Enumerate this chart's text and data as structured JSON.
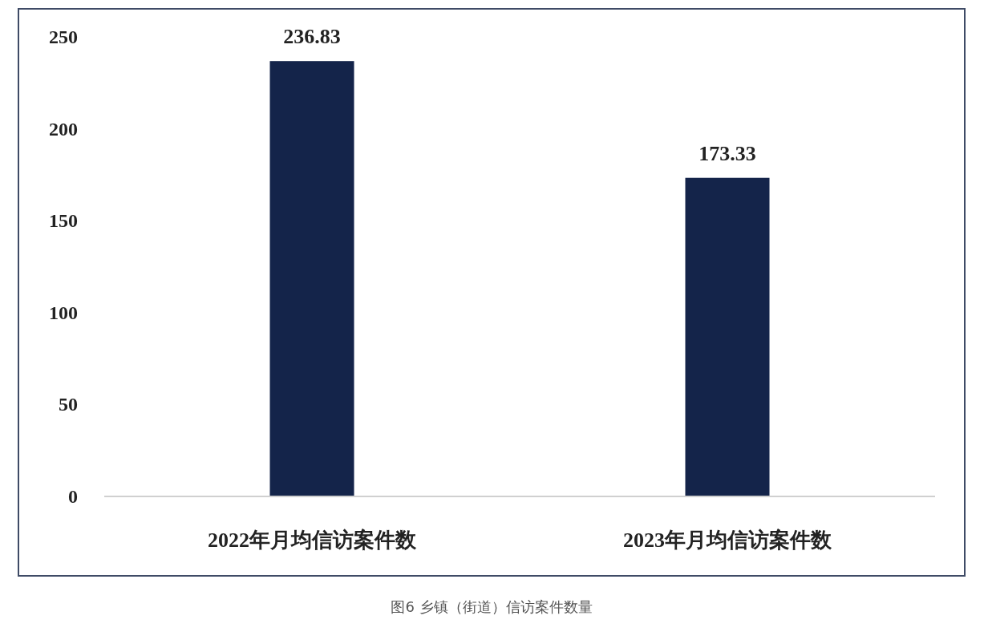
{
  "chart_data": {
    "type": "bar",
    "categories": [
      "2022年月均信访案件数",
      "2023年月均信访案件数"
    ],
    "values": [
      236.83,
      173.33
    ],
    "color": "#14244a",
    "ylim": [
      0,
      250
    ],
    "yticks": [
      0,
      50,
      100,
      150,
      200,
      250
    ],
    "grid": false,
    "data_labels": true,
    "annotations": [
      "图6 乡镇（街道）信访案件数量"
    ]
  }
}
